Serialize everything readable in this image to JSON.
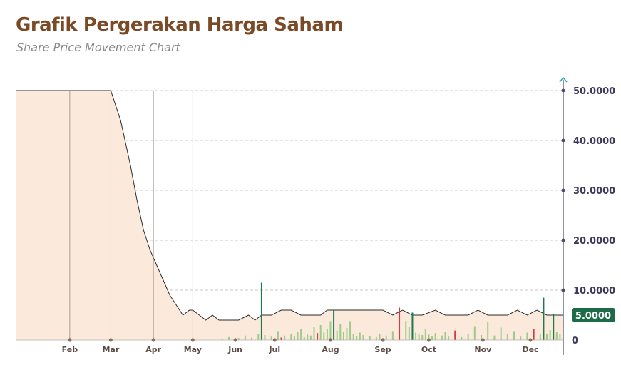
{
  "header": {
    "title": "Grafik Pergerakan Harga Saham",
    "subtitle": "Share Price Movement Chart"
  },
  "colors": {
    "area_fill": "#fbe9dc",
    "line": "#2b2b2b",
    "grid": "#c8c8c8",
    "axis": "#4a4a6a",
    "volume_up": "#1e7a4e",
    "volume_down": "#d9363e",
    "volume_neutral": "#9ccc8a",
    "badge": "#1e6b48",
    "title": "#7a4a26"
  },
  "chart_data": {
    "type": "area",
    "xlabel": "",
    "ylabel": "",
    "ylim": [
      0,
      50
    ],
    "grid": true,
    "y_axis_side": "right",
    "y_ticks": [
      "50.0000",
      "40.0000",
      "30.0000",
      "20.0000",
      "10.0000",
      "0"
    ],
    "x_ticks": [
      "Feb",
      "Mar",
      "Apr",
      "May",
      "Jun",
      "Jul",
      "Aug",
      "Sep",
      "Oct",
      "Nov",
      "Dec"
    ],
    "last_price_label": "5.0000",
    "series": [
      {
        "x": [
          0,
          15,
          30,
          45,
          58,
          64,
          70,
          74,
          78,
          82,
          86,
          90,
          94,
          98,
          102,
          106,
          108,
          112,
          116,
          120,
          124,
          130,
          136,
          142,
          146,
          150,
          156,
          162,
          168,
          174,
          180,
          186,
          190,
          194,
          198,
          204,
          210,
          218,
          224,
          230,
          236,
          242,
          248,
          256,
          262,
          268,
          272,
          276,
          282,
          288,
          294,
          300,
          306,
          312,
          318,
          324,
          330,
          334
        ],
        "values": [
          50,
          50,
          50,
          50,
          50,
          44,
          35,
          28,
          22,
          18,
          15,
          12,
          9,
          7,
          5,
          6,
          6,
          5,
          4,
          5,
          4,
          4,
          4,
          5,
          4,
          5,
          5,
          6,
          6,
          5,
          5,
          5,
          6,
          6,
          6,
          6,
          6,
          6,
          6,
          5,
          6,
          5,
          5,
          6,
          5,
          5,
          5,
          5,
          6,
          5,
          5,
          5,
          6,
          5,
          6,
          5,
          5,
          5
        ]
      }
    ],
    "volume": {
      "x": [
        126,
        130,
        136,
        140,
        144,
        148,
        150,
        152,
        156,
        160,
        162,
        164,
        168,
        170,
        172,
        174,
        176,
        178,
        180,
        182,
        184,
        186,
        188,
        190,
        192,
        194,
        196,
        198,
        200,
        202,
        204,
        206,
        208,
        210,
        212,
        216,
        220,
        222,
        226,
        230,
        234,
        238,
        240,
        242,
        244,
        246,
        248,
        250,
        252,
        254,
        256,
        260,
        262,
        264,
        268,
        272,
        276,
        280,
        284,
        288,
        292,
        296,
        300,
        304,
        308,
        312,
        316,
        320,
        322,
        324,
        326,
        328,
        330,
        332
      ],
      "values": [
        0.3,
        0.6,
        0.4,
        0.9,
        0.5,
        1.2,
        11.5,
        1.0,
        0.7,
        1.8,
        0.5,
        0.9,
        1.3,
        0.8,
        1.6,
        2.2,
        0.6,
        1.1,
        0.9,
        2.7,
        1.4,
        3.0,
        1.5,
        2.2,
        3.8,
        6.0,
        1.9,
        3.2,
        1.6,
        2.4,
        3.8,
        1.2,
        0.7,
        1.5,
        1.0,
        0.8,
        0.6,
        1.3,
        0.9,
        1.8,
        6.5,
        3.8,
        2.6,
        5.5,
        1.5,
        1.2,
        1.0,
        2.3,
        1.1,
        0.8,
        1.4,
        0.9,
        1.6,
        0.7,
        1.9,
        0.6,
        1.2,
        2.8,
        1.0,
        3.6,
        0.9,
        2.5,
        1.3,
        1.8,
        0.7,
        1.5,
        2.2,
        1.1,
        8.5,
        1.3,
        2.0,
        5.3,
        1.6,
        1.2
      ],
      "direction": [
        "n",
        "n",
        "n",
        "n",
        "n",
        "n",
        "u",
        "n",
        "n",
        "n",
        "d",
        "n",
        "n",
        "n",
        "n",
        "n",
        "n",
        "n",
        "n",
        "n",
        "d",
        "n",
        "n",
        "n",
        "n",
        "u",
        "n",
        "n",
        "n",
        "n",
        "n",
        "n",
        "n",
        "n",
        "n",
        "n",
        "n",
        "n",
        "n",
        "n",
        "d",
        "n",
        "n",
        "u",
        "n",
        "n",
        "n",
        "n",
        "n",
        "n",
        "n",
        "n",
        "n",
        "n",
        "d",
        "n",
        "n",
        "n",
        "n",
        "n",
        "n",
        "n",
        "n",
        "n",
        "n",
        "n",
        "d",
        "n",
        "u",
        "n",
        "n",
        "u",
        "n",
        "n"
      ]
    }
  }
}
